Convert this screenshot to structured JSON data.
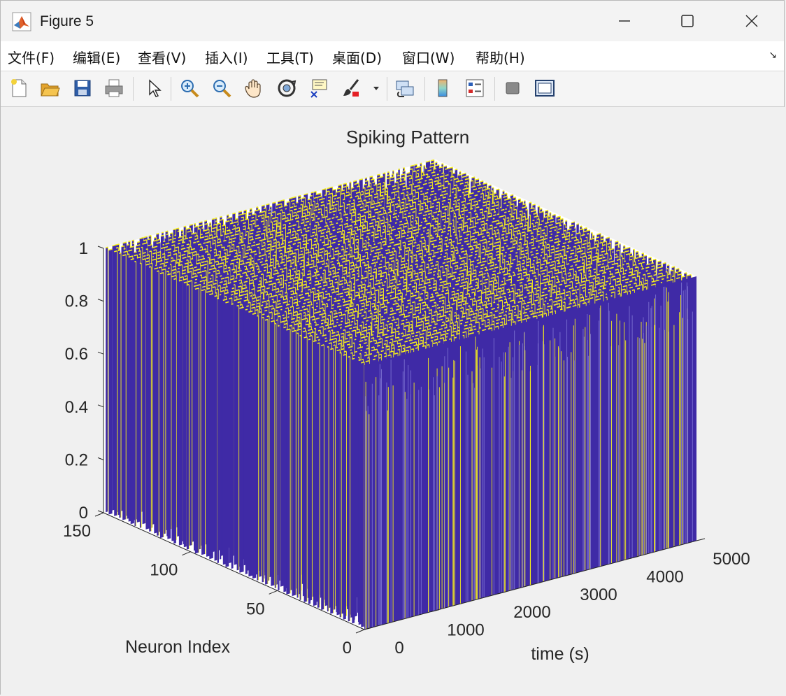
{
  "window": {
    "title": "Figure 5",
    "minimize_glyph": "—",
    "maximize_glyph": "☐",
    "close_glyph": "✕"
  },
  "menu": {
    "items": [
      "文件(F)",
      "编辑(E)",
      "查看(V)",
      "插入(I)",
      "工具(T)",
      "桌面(D)",
      "窗口(W)",
      "帮助(H)"
    ],
    "overflow_glyph": "↘"
  },
  "toolbar": {
    "icons": [
      "new-figure-icon",
      "open-file-icon",
      "save-icon",
      "print-icon",
      "edit-plot-pointer-icon",
      "zoom-in-icon",
      "zoom-out-icon",
      "pan-hand-icon",
      "rotate-3d-icon",
      "data-cursor-icon",
      "brush-icon",
      "brush-dropdown-icon",
      "link-plot-icon",
      "colorbar-icon",
      "legend-icon",
      "hide-plot-tools-icon",
      "show-plot-tools-icon"
    ]
  },
  "colors": {
    "spike_low": "#3f2aa6",
    "spike_high": "#f5ee1b",
    "axis_text": "#262626",
    "figure_bg": "#f0f0f0"
  },
  "chart_data": {
    "type": "3d-spike-raster",
    "title": "Spiking Pattern",
    "xlabel": "time (s)",
    "ylabel": "Neuron Index",
    "zlabel": "",
    "xlim": [
      0,
      5000
    ],
    "ylim": [
      0,
      150
    ],
    "zlim": [
      0,
      1
    ],
    "x_ticks": [
      0,
      1000,
      2000,
      3000,
      4000,
      5000
    ],
    "y_ticks": [
      0,
      50,
      100,
      150
    ],
    "z_ticks": [
      0,
      0.2,
      0.4,
      0.6,
      0.8,
      1
    ],
    "x_tick_labels": [
      "0",
      "1000",
      "2000",
      "3000",
      "4000",
      "5000"
    ],
    "y_tick_labels": [
      "0",
      "50",
      "100",
      "150"
    ],
    "z_tick_labels": [
      "0",
      "0.2",
      "0.4",
      "0.6",
      "0.8",
      "1"
    ],
    "spike_values": [
      0,
      1
    ],
    "colormap": "parula"
  }
}
